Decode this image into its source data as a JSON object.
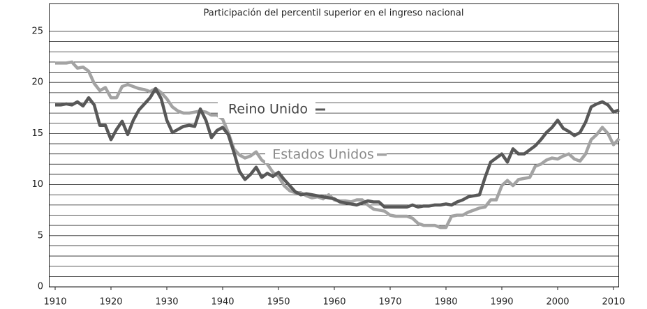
{
  "chart_data": {
    "type": "line",
    "title": "Participación del percentil superior en el ingreso nacional",
    "x": [
      1910,
      1911,
      1912,
      1913,
      1914,
      1915,
      1916,
      1917,
      1918,
      1919,
      1920,
      1921,
      1922,
      1923,
      1924,
      1925,
      1926,
      1927,
      1928,
      1929,
      1930,
      1931,
      1932,
      1933,
      1934,
      1935,
      1936,
      1937,
      1938,
      1939,
      1940,
      1941,
      1942,
      1943,
      1944,
      1945,
      1946,
      1947,
      1948,
      1949,
      1950,
      1951,
      1952,
      1953,
      1954,
      1955,
      1956,
      1957,
      1958,
      1959,
      1960,
      1961,
      1962,
      1963,
      1964,
      1965,
      1966,
      1967,
      1968,
      1969,
      1970,
      1971,
      1972,
      1973,
      1974,
      1975,
      1976,
      1977,
      1978,
      1979,
      1980,
      1981,
      1982,
      1983,
      1984,
      1985,
      1986,
      1987,
      1988,
      1989,
      1990,
      1991,
      1992,
      1993,
      1994,
      1995,
      1996,
      1997,
      1998,
      1999,
      2000,
      2001,
      2002,
      2003,
      2004,
      2005,
      2006,
      2007,
      2008,
      2009,
      2010,
      2011
    ],
    "series": [
      {
        "name": "Estados Unidos",
        "color": "#a3a3a3",
        "values": [
          21.9,
          21.9,
          21.9,
          22.0,
          21.4,
          21.5,
          21.1,
          19.9,
          19.2,
          19.5,
          18.5,
          18.5,
          19.6,
          19.8,
          19.6,
          19.4,
          19.3,
          19.1,
          19.4,
          19.0,
          18.4,
          17.6,
          17.2,
          17.0,
          17.0,
          17.1,
          17.2,
          17.1,
          16.8,
          16.8,
          16.4,
          15.1,
          13.5,
          12.9,
          12.6,
          12.8,
          13.2,
          12.4,
          12.0,
          11.2,
          10.8,
          9.9,
          9.4,
          9.2,
          9.2,
          8.9,
          8.7,
          8.8,
          8.6,
          9.0,
          8.5,
          8.4,
          8.4,
          8.3,
          8.5,
          8.5,
          8.0,
          7.6,
          7.5,
          7.4,
          7.0,
          6.9,
          6.9,
          6.9,
          6.7,
          6.2,
          6.0,
          6.0,
          6.0,
          5.8,
          5.8,
          6.9,
          7.0,
          7.0,
          7.3,
          7.5,
          7.7,
          7.8,
          8.5,
          8.5,
          9.9,
          10.4,
          9.9,
          10.5,
          10.6,
          10.7,
          11.8,
          12.0,
          12.4,
          12.6,
          12.5,
          12.8,
          13.0,
          12.5,
          12.3,
          13.0,
          14.4,
          14.9,
          15.6,
          15.0,
          13.9,
          14.5
        ]
      },
      {
        "name": "Reino Unido",
        "color": "#585858",
        "values": [
          17.8,
          17.8,
          17.9,
          17.8,
          18.1,
          17.7,
          18.5,
          17.8,
          15.8,
          15.8,
          14.4,
          15.4,
          16.2,
          14.9,
          16.3,
          17.3,
          17.9,
          18.5,
          19.4,
          18.4,
          16.3,
          15.1,
          15.4,
          15.7,
          15.8,
          15.7,
          17.4,
          16.3,
          14.6,
          15.3,
          15.6,
          14.9,
          13.2,
          11.3,
          10.5,
          11.0,
          11.7,
          10.7,
          11.1,
          10.8,
          11.2,
          10.5,
          9.9,
          9.3,
          9.0,
          9.1,
          9.0,
          8.9,
          8.8,
          8.7,
          8.6,
          8.3,
          8.2,
          8.1,
          8.0,
          8.2,
          8.4,
          8.3,
          8.3,
          7.8,
          7.8,
          7.8,
          7.8,
          7.8,
          8.0,
          7.8,
          7.9,
          7.9,
          8.0,
          8.0,
          8.1,
          8.0,
          8.3,
          8.5,
          8.8,
          8.9,
          9.0,
          10.7,
          12.2,
          12.6,
          13.0,
          12.2,
          13.5,
          13.0,
          13.0,
          13.4,
          13.8,
          14.4,
          15.1,
          15.6,
          16.3,
          15.5,
          15.2,
          14.8,
          15.1,
          16.1,
          17.6,
          17.9,
          18.1,
          17.8,
          17.1,
          17.3
        ]
      }
    ],
    "xlim": [
      1909,
      2011
    ],
    "xticks": [
      1910,
      1920,
      1930,
      1940,
      1950,
      1960,
      1970,
      1980,
      1990,
      2000,
      2010
    ],
    "ylim": [
      0,
      25
    ],
    "yticks": [
      0,
      5,
      10,
      15,
      20,
      25
    ],
    "minor_yticks": [
      1,
      2,
      3,
      4,
      6,
      7,
      8,
      9,
      11,
      12,
      13,
      14,
      16,
      17,
      18,
      19,
      21,
      22,
      23,
      24
    ],
    "grid": true
  }
}
